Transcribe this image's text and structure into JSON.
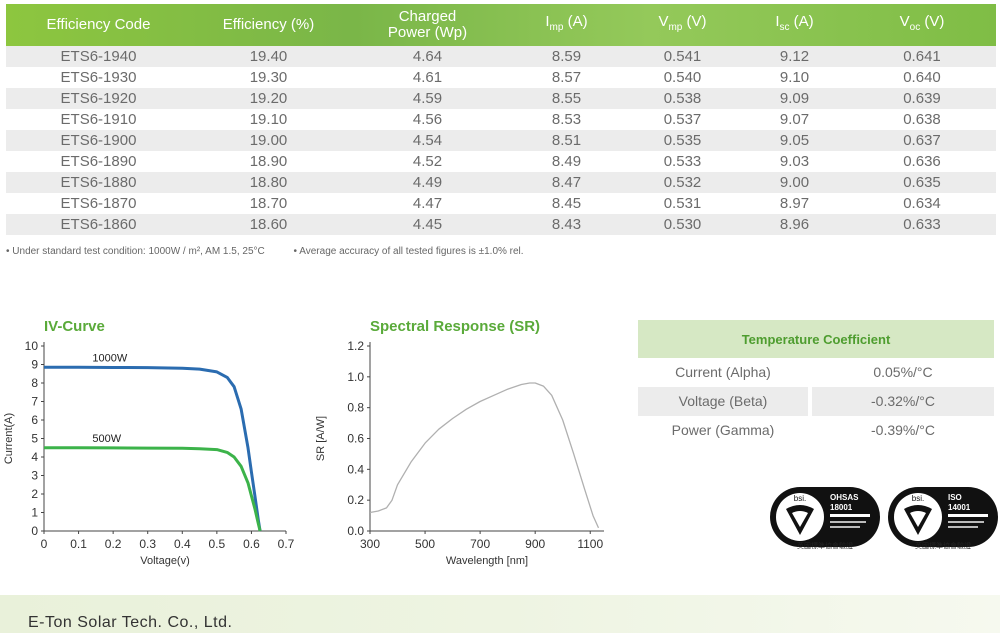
{
  "spec_table": {
    "headers": [
      "Efficiency Code",
      "Efficiency (%)",
      "Charged Power (Wp)",
      "Imp (A)",
      "Vmp (V)",
      "Isc (A)",
      "Voc (V)"
    ],
    "header_lines": {
      "charged": [
        "Charged",
        "Power (Wp)"
      ],
      "imp": [
        "I",
        "mp",
        " (A)"
      ],
      "vmp": [
        "V",
        "mp",
        " (V)"
      ],
      "isc": [
        "I",
        "sc",
        " (A)"
      ],
      "voc": [
        "V",
        "oc",
        " (V)"
      ]
    },
    "rows": [
      [
        "ETS6-1940",
        "19.40",
        "4.64",
        "8.59",
        "0.541",
        "9.12",
        "0.641"
      ],
      [
        "ETS6-1930",
        "19.30",
        "4.61",
        "8.57",
        "0.540",
        "9.10",
        "0.640"
      ],
      [
        "ETS6-1920",
        "19.20",
        "4.59",
        "8.55",
        "0.538",
        "9.09",
        "0.639"
      ],
      [
        "ETS6-1910",
        "19.10",
        "4.56",
        "8.53",
        "0.537",
        "9.07",
        "0.638"
      ],
      [
        "ETS6-1900",
        "19.00",
        "4.54",
        "8.51",
        "0.535",
        "9.05",
        "0.637"
      ],
      [
        "ETS6-1890",
        "18.90",
        "4.52",
        "8.49",
        "0.533",
        "9.03",
        "0.636"
      ],
      [
        "ETS6-1880",
        "18.80",
        "4.49",
        "8.47",
        "0.532",
        "9.00",
        "0.635"
      ],
      [
        "ETS6-1870",
        "18.70",
        "4.47",
        "8.45",
        "0.531",
        "8.97",
        "0.634"
      ],
      [
        "ETS6-1860",
        "18.60",
        "4.45",
        "8.43",
        "0.530",
        "8.96",
        "0.633"
      ]
    ]
  },
  "notes": [
    "• Under standard test condition: 1000W / m², AM 1.5, 25°C",
    "• Average accuracy of all tested figures is ±1.0% rel."
  ],
  "chart_data": [
    {
      "type": "line",
      "title": "IV-Curve",
      "xlabel": "Voltage(v)",
      "ylabel": "Current(A)",
      "xlim": [
        0,
        0.7
      ],
      "ylim": [
        0,
        10
      ],
      "xticks": [
        "0",
        "0.1",
        "0.2",
        "0.3",
        "0.4",
        "0.5",
        "0.6",
        "0.7"
      ],
      "yticks": [
        "0",
        "1",
        "2",
        "3",
        "4",
        "5",
        "6",
        "7",
        "8",
        "9",
        "10"
      ],
      "series": [
        {
          "name": "1000W",
          "color": "#2b6cb0",
          "x": [
            0,
            0.1,
            0.2,
            0.3,
            0.4,
            0.45,
            0.5,
            0.53,
            0.55,
            0.57,
            0.59,
            0.6,
            0.61,
            0.62,
            0.625
          ],
          "y": [
            8.85,
            8.85,
            8.84,
            8.83,
            8.8,
            8.75,
            8.6,
            8.3,
            7.8,
            6.6,
            4.5,
            3.2,
            1.9,
            0.6,
            0
          ]
        },
        {
          "name": "500W",
          "color": "#3cb34a",
          "x": [
            0,
            0.1,
            0.2,
            0.3,
            0.4,
            0.45,
            0.5,
            0.53,
            0.55,
            0.57,
            0.59,
            0.6,
            0.61,
            0.62,
            0.625
          ],
          "y": [
            4.5,
            4.5,
            4.49,
            4.48,
            4.47,
            4.45,
            4.4,
            4.25,
            4.0,
            3.5,
            2.6,
            1.9,
            1.2,
            0.4,
            0
          ]
        }
      ]
    },
    {
      "type": "line",
      "title": "Spectral Response (SR)",
      "xlabel": "Wavelength [nm]",
      "ylabel": "SR [A/W]",
      "xlim": [
        300,
        1150
      ],
      "ylim": [
        0,
        1.2
      ],
      "xticks": [
        "300",
        "500",
        "700",
        "900",
        "1100"
      ],
      "yticks": [
        "0.0",
        "0.2",
        "0.4",
        "0.6",
        "0.8",
        "1.0",
        "1.2"
      ],
      "series": [
        {
          "color": "#b0b0b0",
          "x": [
            300,
            330,
            360,
            380,
            400,
            450,
            500,
            550,
            600,
            650,
            700,
            750,
            800,
            850,
            880,
            900,
            930,
            960,
            1000,
            1040,
            1080,
            1110,
            1130
          ],
          "y": [
            0.12,
            0.13,
            0.15,
            0.2,
            0.3,
            0.45,
            0.57,
            0.66,
            0.73,
            0.79,
            0.84,
            0.88,
            0.92,
            0.95,
            0.96,
            0.96,
            0.94,
            0.88,
            0.72,
            0.5,
            0.27,
            0.1,
            0.02
          ]
        }
      ]
    }
  ],
  "temperature": {
    "title": "Temperature Coefficient",
    "rows": [
      {
        "label": "Current (Alpha)",
        "value": "0.05%/°C"
      },
      {
        "label": "Voltage (Beta)",
        "value": "-0.32%/°C"
      },
      {
        "label": "Power (Gamma)",
        "value": "-0.39%/°C"
      }
    ]
  },
  "certifications": [
    {
      "brand": "bsi.",
      "standard": "OHSAS",
      "number": "18001",
      "caption": "英國標準協會驗證"
    },
    {
      "brand": "bsi.",
      "standard": "ISO",
      "number": "14001",
      "caption": "英國標準協會驗證"
    }
  ],
  "footer": {
    "company": "E-Ton Solar Tech. Co., Ltd."
  },
  "colors": {
    "header_green": "#7ab648",
    "title_green": "#5aaa3a",
    "row_shade": "#ececec",
    "temp_header": "#d6e8c4"
  }
}
